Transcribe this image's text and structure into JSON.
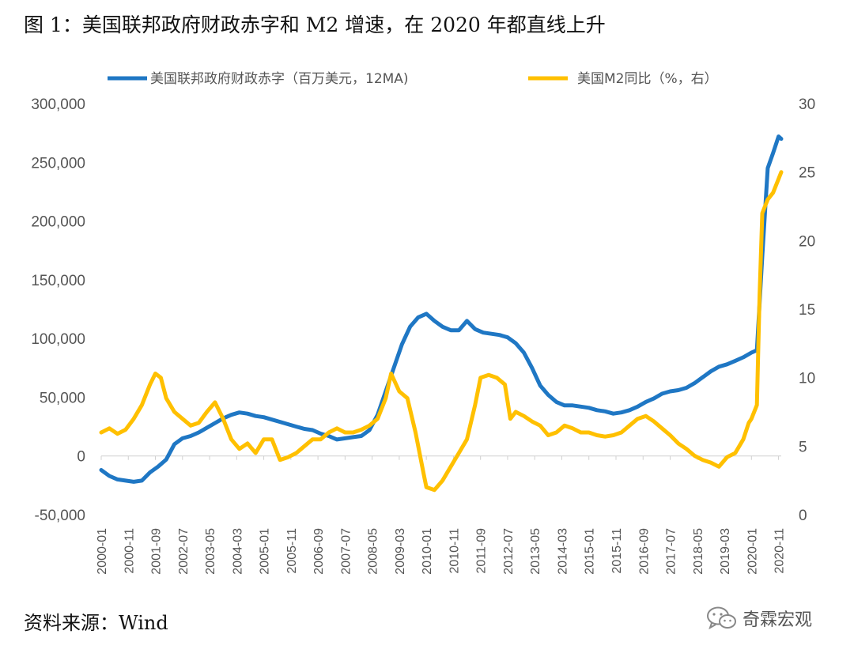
{
  "title": "图 1：美国联邦政府财政赤字和 M2 增速，在 2020 年都直线上升",
  "source": "资料来源：Wind",
  "brand": "奇霖宏观",
  "colors": {
    "deficit": "#1f77c4",
    "m2": "#ffc000",
    "axis": "#d0d0d0"
  },
  "chart_data": {
    "type": "line",
    "title": "",
    "legend_position": "top",
    "grid": false,
    "x_ticks": [
      "2000-01",
      "2000-11",
      "2001-09",
      "2002-07",
      "2003-05",
      "2004-03",
      "2005-01",
      "2005-11",
      "2006-09",
      "2007-07",
      "2008-05",
      "2009-03",
      "2010-01",
      "2010-11",
      "2011-09",
      "2012-07",
      "2013-05",
      "2014-03",
      "2015-01",
      "2015-11",
      "2016-09",
      "2017-07",
      "2018-05",
      "2019-03",
      "2020-01",
      "2020-11"
    ],
    "y_left": {
      "min": -50000,
      "max": 300000,
      "ticks": [
        "-50,000",
        "0",
        "50,000",
        "100,000",
        "150,000",
        "200,000",
        "250,000",
        "300,000"
      ]
    },
    "y_right": {
      "min": 0,
      "max": 30,
      "ticks": [
        "0",
        "5",
        "10",
        "15",
        "20",
        "25",
        "30"
      ]
    },
    "series": [
      {
        "name": "美国联邦政府财政赤字（百万美元，12MA)",
        "axis": "left",
        "points": [
          [
            "2000-01",
            -12000
          ],
          [
            "2000-04",
            -17000
          ],
          [
            "2000-07",
            -20000
          ],
          [
            "2000-10",
            -21000
          ],
          [
            "2001-01",
            -22000
          ],
          [
            "2001-04",
            -21000
          ],
          [
            "2001-07",
            -14000
          ],
          [
            "2001-10",
            -9000
          ],
          [
            "2002-01",
            -3000
          ],
          [
            "2002-04",
            10000
          ],
          [
            "2002-07",
            15000
          ],
          [
            "2002-10",
            17000
          ],
          [
            "2003-01",
            20000
          ],
          [
            "2003-04",
            24000
          ],
          [
            "2003-07",
            28000
          ],
          [
            "2003-10",
            32000
          ],
          [
            "2004-01",
            35000
          ],
          [
            "2004-04",
            37000
          ],
          [
            "2004-07",
            36000
          ],
          [
            "2004-10",
            34000
          ],
          [
            "2005-01",
            33000
          ],
          [
            "2005-04",
            31000
          ],
          [
            "2005-07",
            29000
          ],
          [
            "2005-10",
            27000
          ],
          [
            "2006-01",
            25000
          ],
          [
            "2006-04",
            23000
          ],
          [
            "2006-07",
            22000
          ],
          [
            "2006-10",
            19000
          ],
          [
            "2007-01",
            17000
          ],
          [
            "2007-04",
            14000
          ],
          [
            "2007-07",
            15000
          ],
          [
            "2007-10",
            16000
          ],
          [
            "2008-01",
            17000
          ],
          [
            "2008-04",
            22000
          ],
          [
            "2008-07",
            35000
          ],
          [
            "2008-10",
            55000
          ],
          [
            "2009-01",
            75000
          ],
          [
            "2009-04",
            95000
          ],
          [
            "2009-07",
            110000
          ],
          [
            "2009-10",
            118000
          ],
          [
            "2010-01",
            121000
          ],
          [
            "2010-04",
            115000
          ],
          [
            "2010-07",
            110000
          ],
          [
            "2010-10",
            107000
          ],
          [
            "2011-01",
            107000
          ],
          [
            "2011-04",
            115000
          ],
          [
            "2011-07",
            108000
          ],
          [
            "2011-10",
            105000
          ],
          [
            "2012-01",
            104000
          ],
          [
            "2012-04",
            103000
          ],
          [
            "2012-07",
            101000
          ],
          [
            "2012-10",
            96000
          ],
          [
            "2013-01",
            88000
          ],
          [
            "2013-04",
            75000
          ],
          [
            "2013-07",
            60000
          ],
          [
            "2013-10",
            52000
          ],
          [
            "2014-01",
            46000
          ],
          [
            "2014-04",
            43000
          ],
          [
            "2014-07",
            43000
          ],
          [
            "2014-10",
            42000
          ],
          [
            "2015-01",
            41000
          ],
          [
            "2015-04",
            39000
          ],
          [
            "2015-07",
            38000
          ],
          [
            "2015-10",
            36000
          ],
          [
            "2016-01",
            37000
          ],
          [
            "2016-04",
            39000
          ],
          [
            "2016-07",
            42000
          ],
          [
            "2016-10",
            46000
          ],
          [
            "2017-01",
            49000
          ],
          [
            "2017-04",
            53000
          ],
          [
            "2017-07",
            55000
          ],
          [
            "2017-10",
            56000
          ],
          [
            "2018-01",
            58000
          ],
          [
            "2018-04",
            62000
          ],
          [
            "2018-07",
            67000
          ],
          [
            "2018-10",
            72000
          ],
          [
            "2019-01",
            76000
          ],
          [
            "2019-04",
            78000
          ],
          [
            "2019-07",
            81000
          ],
          [
            "2019-10",
            84000
          ],
          [
            "2020-01",
            88000
          ],
          [
            "2020-03",
            90000
          ],
          [
            "2020-05",
            170000
          ],
          [
            "2020-07",
            245000
          ],
          [
            "2020-09",
            258000
          ],
          [
            "2020-11",
            272000
          ],
          [
            "2020-12",
            270000
          ]
        ]
      },
      {
        "name": "美国M2同比（%，右）",
        "axis": "right",
        "points": [
          [
            "2000-01",
            6.0
          ],
          [
            "2000-04",
            6.3
          ],
          [
            "2000-07",
            5.9
          ],
          [
            "2000-10",
            6.2
          ],
          [
            "2001-01",
            7.0
          ],
          [
            "2001-04",
            8.0
          ],
          [
            "2001-07",
            9.5
          ],
          [
            "2001-09",
            10.3
          ],
          [
            "2001-11",
            10.0
          ],
          [
            "2002-01",
            8.5
          ],
          [
            "2002-04",
            7.5
          ],
          [
            "2002-07",
            7.0
          ],
          [
            "2002-10",
            6.5
          ],
          [
            "2003-01",
            6.7
          ],
          [
            "2003-04",
            7.5
          ],
          [
            "2003-07",
            8.2
          ],
          [
            "2003-10",
            7.0
          ],
          [
            "2004-01",
            5.5
          ],
          [
            "2004-04",
            4.8
          ],
          [
            "2004-07",
            5.2
          ],
          [
            "2004-10",
            4.5
          ],
          [
            "2005-01",
            5.5
          ],
          [
            "2005-04",
            5.5
          ],
          [
            "2005-07",
            4.0
          ],
          [
            "2005-10",
            4.2
          ],
          [
            "2006-01",
            4.5
          ],
          [
            "2006-04",
            5.0
          ],
          [
            "2006-07",
            5.5
          ],
          [
            "2006-10",
            5.5
          ],
          [
            "2007-01",
            6.0
          ],
          [
            "2007-04",
            6.3
          ],
          [
            "2007-07",
            6.0
          ],
          [
            "2007-10",
            6.0
          ],
          [
            "2008-01",
            6.2
          ],
          [
            "2008-04",
            6.5
          ],
          [
            "2008-07",
            7.0
          ],
          [
            "2008-10",
            8.5
          ],
          [
            "2008-12",
            10.3
          ],
          [
            "2009-03",
            9.0
          ],
          [
            "2009-06",
            8.5
          ],
          [
            "2009-09",
            6.0
          ],
          [
            "2009-12",
            3.0
          ],
          [
            "2010-01",
            2.0
          ],
          [
            "2010-04",
            1.8
          ],
          [
            "2010-07",
            2.5
          ],
          [
            "2010-10",
            3.5
          ],
          [
            "2011-01",
            4.5
          ],
          [
            "2011-04",
            5.5
          ],
          [
            "2011-07",
            8.0
          ],
          [
            "2011-09",
            10.0
          ],
          [
            "2011-12",
            10.2
          ],
          [
            "2012-03",
            10.0
          ],
          [
            "2012-06",
            9.5
          ],
          [
            "2012-08",
            7.0
          ],
          [
            "2012-10",
            7.5
          ],
          [
            "2013-01",
            7.2
          ],
          [
            "2013-04",
            6.8
          ],
          [
            "2013-07",
            6.5
          ],
          [
            "2013-10",
            5.8
          ],
          [
            "2014-01",
            6.0
          ],
          [
            "2014-04",
            6.5
          ],
          [
            "2014-07",
            6.3
          ],
          [
            "2014-10",
            6.0
          ],
          [
            "2015-01",
            6.0
          ],
          [
            "2015-04",
            5.8
          ],
          [
            "2015-07",
            5.7
          ],
          [
            "2015-10",
            5.8
          ],
          [
            "2016-01",
            6.0
          ],
          [
            "2016-04",
            6.5
          ],
          [
            "2016-07",
            7.0
          ],
          [
            "2016-10",
            7.2
          ],
          [
            "2017-01",
            6.8
          ],
          [
            "2017-04",
            6.3
          ],
          [
            "2017-07",
            5.8
          ],
          [
            "2017-10",
            5.2
          ],
          [
            "2018-01",
            4.8
          ],
          [
            "2018-04",
            4.3
          ],
          [
            "2018-07",
            4.0
          ],
          [
            "2018-10",
            3.8
          ],
          [
            "2019-01",
            3.5
          ],
          [
            "2019-04",
            4.2
          ],
          [
            "2019-07",
            4.5
          ],
          [
            "2019-10",
            5.5
          ],
          [
            "2019-12",
            6.7
          ],
          [
            "2020-01",
            7.0
          ],
          [
            "2020-03",
            8.0
          ],
          [
            "2020-04",
            16.0
          ],
          [
            "2020-05",
            22.0
          ],
          [
            "2020-07",
            23.0
          ],
          [
            "2020-09",
            23.5
          ],
          [
            "2020-11",
            24.5
          ],
          [
            "2020-12",
            25.0
          ]
        ]
      }
    ]
  }
}
